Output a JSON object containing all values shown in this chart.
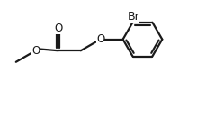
{
  "background": "#ffffff",
  "line_color": "#1a1a1a",
  "line_width": 1.6,
  "text_color": "#1a1a1a",
  "font_size": 8.5,
  "figsize": [
    2.19,
    1.31
  ],
  "dpi": 100,
  "xlim": [
    0,
    10
  ],
  "ylim": [
    0,
    6
  ]
}
